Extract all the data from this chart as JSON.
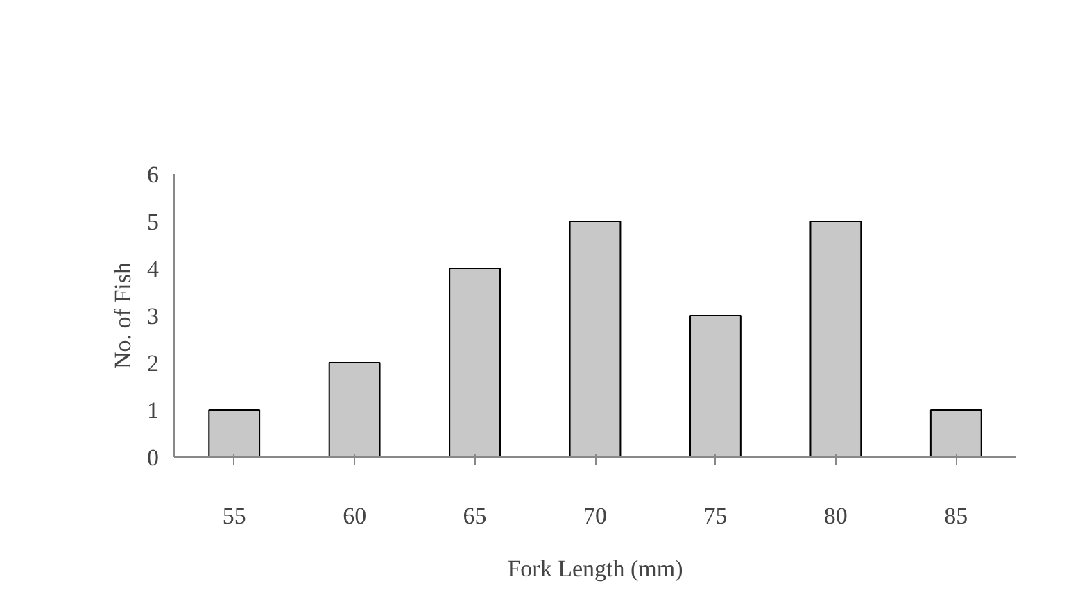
{
  "chart_data": {
    "type": "bar",
    "xlabel": "Fork Length (mm)",
    "ylabel": "No. of Fish",
    "categories": [
      "55",
      "60",
      "65",
      "70",
      "75",
      "80",
      "85"
    ],
    "values": [
      1,
      2,
      4,
      5,
      3,
      5,
      1
    ],
    "color": "#c8c8c8",
    "ylim": [
      0,
      6
    ],
    "yticks": [
      0,
      1,
      2,
      3,
      4,
      5,
      6
    ],
    "grid": false
  }
}
